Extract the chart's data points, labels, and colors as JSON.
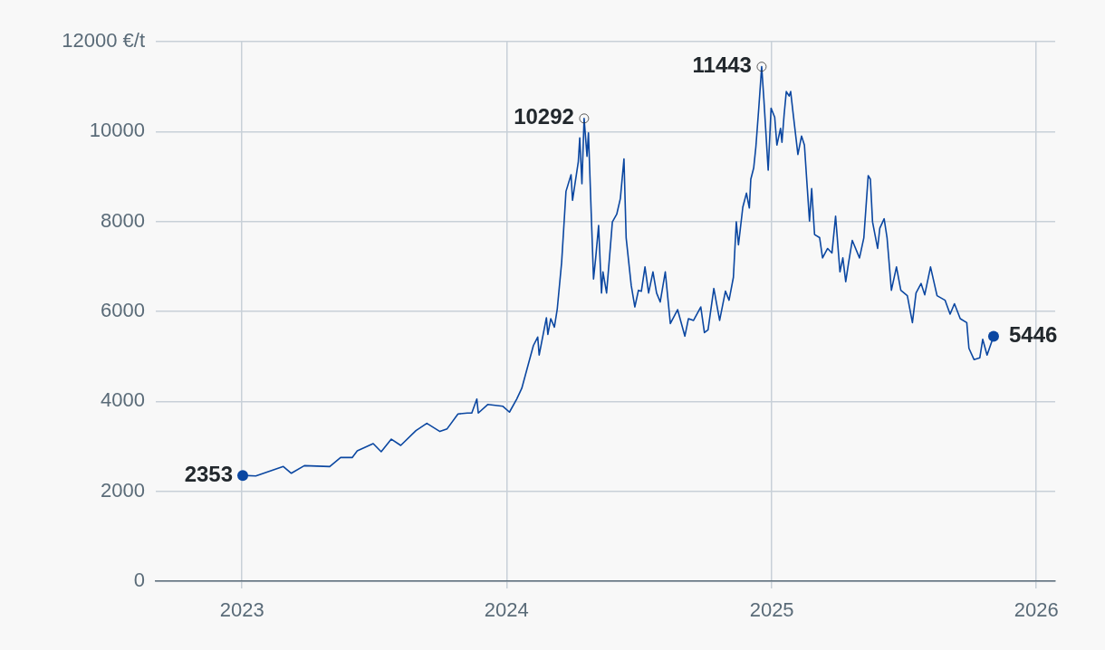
{
  "chart_data": {
    "type": "line",
    "color": "#0b47a1",
    "x": [
      "2023-01-02",
      "2023-01-20",
      "2023-02-27",
      "2023-03-10",
      "2023-03-28",
      "2023-05-02",
      "2023-05-17",
      "2023-06-02",
      "2023-06-09",
      "2023-07-01",
      "2023-07-12",
      "2023-07-26",
      "2023-08-08",
      "2023-08-29",
      "2023-09-13",
      "2023-10-01",
      "2023-10-11",
      "2023-10-26",
      "2023-11-08",
      "2023-11-14",
      "2023-11-21",
      "2023-11-23",
      "2023-12-06",
      "2023-12-27",
      "2024-01-05",
      "2024-01-15",
      "2024-01-22",
      "2024-02-07",
      "2024-02-13",
      "2024-02-15",
      "2024-02-25",
      "2024-02-27",
      "2024-03-02",
      "2024-03-07",
      "2024-03-11",
      "2024-03-17",
      "2024-03-23",
      "2024-03-30",
      "2024-04-01",
      "2024-04-09",
      "2024-04-11",
      "2024-04-14",
      "2024-04-17",
      "2024-04-21",
      "2024-04-23",
      "2024-04-27",
      "2024-04-30",
      "2024-05-03",
      "2024-05-07",
      "2024-05-11",
      "2024-05-13",
      "2024-05-18",
      "2024-05-22",
      "2024-05-26",
      "2024-06-01",
      "2024-06-06",
      "2024-06-11",
      "2024-06-14",
      "2024-06-21",
      "2024-06-26",
      "2024-07-01",
      "2024-07-05",
      "2024-07-10",
      "2024-07-15",
      "2024-07-21",
      "2024-07-26",
      "2024-07-31",
      "2024-08-07",
      "2024-08-14",
      "2024-08-24",
      "2024-09-03",
      "2024-09-08",
      "2024-09-15",
      "2024-09-25",
      "2024-09-30",
      "2024-10-05",
      "2024-10-13",
      "2024-10-21",
      "2024-10-29",
      "2024-11-03",
      "2024-11-09",
      "2024-11-13",
      "2024-11-16",
      "2024-11-22",
      "2024-11-27",
      "2024-12-01",
      "2024-12-03",
      "2024-12-07",
      "2024-12-10",
      "2024-12-14",
      "2024-12-18",
      "2024-12-21",
      "2024-12-27",
      "2024-12-31",
      "2025-01-05",
      "2025-01-08",
      "2025-01-13",
      "2025-01-15",
      "2025-01-18",
      "2025-01-21",
      "2025-01-25",
      "2025-01-27",
      "2025-01-31",
      "2025-02-06",
      "2025-02-11",
      "2025-02-15",
      "2025-02-19",
      "2025-02-22",
      "2025-02-25",
      "2025-03-01",
      "2025-03-08",
      "2025-03-12",
      "2025-03-19",
      "2025-03-25",
      "2025-03-30",
      "2025-04-05",
      "2025-04-09",
      "2025-04-13",
      "2025-04-17",
      "2025-04-22",
      "2025-05-02",
      "2025-05-08",
      "2025-05-14",
      "2025-05-17",
      "2025-05-20",
      "2025-05-27",
      "2025-05-30",
      "2025-06-05",
      "2025-06-09",
      "2025-06-15",
      "2025-06-22",
      "2025-06-28",
      "2025-07-07",
      "2025-07-14",
      "2025-07-19",
      "2025-07-26",
      "2025-07-31",
      "2025-08-08",
      "2025-08-17",
      "2025-08-28",
      "2025-09-04",
      "2025-09-10",
      "2025-09-18",
      "2025-09-27",
      "2025-09-30",
      "2025-10-07",
      "2025-10-15",
      "2025-10-19",
      "2025-10-25",
      "2025-11-03"
    ],
    "values": [
      2353,
      2340,
      2550,
      2400,
      2570,
      2550,
      2750,
      2750,
      2900,
      3060,
      2880,
      3160,
      3020,
      3350,
      3510,
      3330,
      3390,
      3720,
      3740,
      3740,
      4050,
      3740,
      3930,
      3890,
      3760,
      4050,
      4290,
      5240,
      5430,
      5030,
      5860,
      5490,
      5840,
      5650,
      6060,
      7090,
      8670,
      9040,
      8470,
      9330,
      9860,
      8840,
      10292,
      9450,
      9970,
      8100,
      6720,
      7190,
      7910,
      6410,
      6880,
      6410,
      7190,
      7990,
      8160,
      8510,
      9390,
      7640,
      6580,
      6100,
      6470,
      6450,
      6990,
      6410,
      6880,
      6410,
      6210,
      6880,
      5730,
      6040,
      5450,
      5840,
      5800,
      6100,
      5530,
      5590,
      6510,
      5800,
      6450,
      6250,
      6760,
      7990,
      7480,
      8320,
      8630,
      8300,
      8940,
      9190,
      9660,
      10520,
      11443,
      10730,
      9140,
      10520,
      10320,
      9700,
      10070,
      9760,
      10380,
      10890,
      10790,
      10890,
      10320,
      9490,
      9900,
      9700,
      8730,
      8010,
      8730,
      7710,
      7640,
      7190,
      7400,
      7300,
      8120,
      6880,
      7190,
      6660,
      7090,
      7580,
      7190,
      7640,
      9020,
      8940,
      7990,
      7400,
      7850,
      8060,
      7640,
      6470,
      6990,
      6470,
      6350,
      5750,
      6410,
      6620,
      6370,
      6990,
      6350,
      6250,
      5940,
      6170,
      5840,
      5750,
      5180,
      4930,
      4970,
      5380,
      5030,
      5446
    ],
    "xlim": [
      "2022-09-04",
      "2026-01-27"
    ],
    "xticks": [
      {
        "value": "2023",
        "label": "2023"
      },
      {
        "value": "2024",
        "label": "2024"
      },
      {
        "value": "2025",
        "label": "2025"
      },
      {
        "value": "2026",
        "label": "2026"
      }
    ],
    "ylim": [
      0,
      12000
    ],
    "yticks": [
      0,
      2000,
      4000,
      6000,
      8000,
      10000,
      {
        "value": 12000,
        "label": "12000 €/t"
      }
    ],
    "grid": true,
    "legend": false,
    "marker": "none",
    "line_style": "solid",
    "annotations": [
      {
        "text": "2353",
        "x": "2023-01-02",
        "y": 2353
      },
      {
        "text": "10292",
        "x": "2024-04-17",
        "y": 10292
      },
      {
        "text": "11443",
        "x": "2024-12-18",
        "y": 11443
      },
      {
        "text": "5446",
        "x": "2025-11-03",
        "y": 5446
      }
    ]
  }
}
